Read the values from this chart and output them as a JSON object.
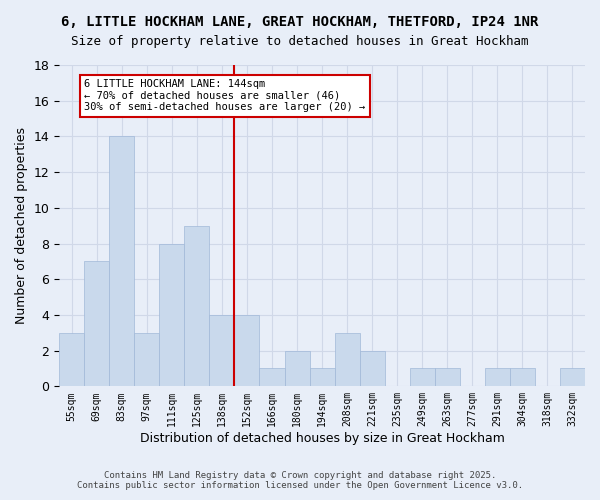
{
  "title_line1": "6, LITTLE HOCKHAM LANE, GREAT HOCKHAM, THETFORD, IP24 1NR",
  "title_line2": "Size of property relative to detached houses in Great Hockham",
  "xlabel": "Distribution of detached houses by size in Great Hockham",
  "ylabel": "Number of detached properties",
  "bins": [
    "55sqm",
    "69sqm",
    "83sqm",
    "97sqm",
    "111sqm",
    "125sqm",
    "138sqm",
    "152sqm",
    "166sqm",
    "180sqm",
    "194sqm",
    "208sqm",
    "221sqm",
    "235sqm",
    "249sqm",
    "263sqm",
    "277sqm",
    "291sqm",
    "304sqm",
    "318sqm",
    "332sqm"
  ],
  "values": [
    3,
    7,
    14,
    3,
    8,
    9,
    4,
    4,
    1,
    2,
    1,
    3,
    2,
    0,
    1,
    1,
    0,
    1,
    1,
    0,
    1
  ],
  "bar_color": "#c9d9ec",
  "bar_edge_color": "#a0b8d8",
  "grid_color": "#d0d8e8",
  "background_color": "#e8eef8",
  "vline_x_index": 6.5,
  "vline_color": "#cc0000",
  "annotation_text": "6 LITTLE HOCKHAM LANE: 144sqm\n← 70% of detached houses are smaller (46)\n30% of semi-detached houses are larger (20) →",
  "annotation_box_color": "#ffffff",
  "annotation_box_edge": "#cc0000",
  "ylim": [
    0,
    18
  ],
  "yticks": [
    0,
    2,
    4,
    6,
    8,
    10,
    12,
    14,
    16,
    18
  ],
  "footer_line1": "Contains HM Land Registry data © Crown copyright and database right 2025.",
  "footer_line2": "Contains public sector information licensed under the Open Government Licence v3.0."
}
